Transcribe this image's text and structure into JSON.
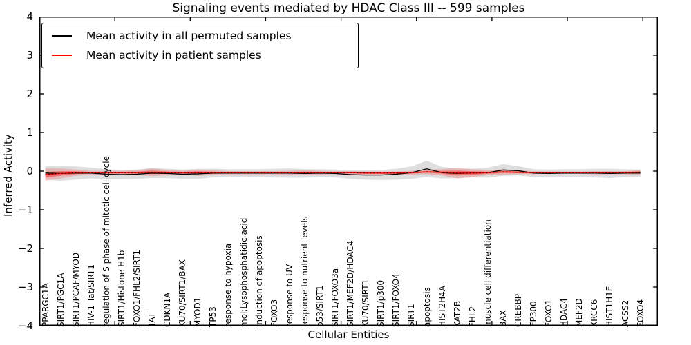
{
  "title": "Signaling events mediated by HDAC Class III -- 599 samples",
  "axes": {
    "ylabel": "Inferred Activity",
    "xlabel": "Cellular Entities"
  },
  "chart_data": {
    "type": "line",
    "title": "Signaling events mediated by HDAC Class III -- 599 samples",
    "xlabel": "Cellular Entities",
    "ylabel": "Inferred Activity",
    "ylim": [
      -4,
      4
    ],
    "grid": false,
    "legend_position": "upper left",
    "yticks": [
      "4",
      "3",
      "2",
      "1",
      "0",
      "−1",
      "−2",
      "−3",
      "−4"
    ],
    "categories": [
      "PPARGC1A",
      "SIRT1/PGC1A",
      "SIRT1/PCAF/MYOD",
      "HIV-1 Tat/SIRT1",
      "regulation of S phase of mitotic cell cycle",
      "SIRT1/Histone H1b",
      "FOXO1/FHL2/SIRT1",
      "TAT",
      "CDKN1A",
      "KU70/SIRT1/BAX",
      "MYOD1",
      "TP53",
      "response to hypoxia",
      "mol:Lysophosphatidic acid",
      "induction of apoptosis",
      "FOXO3",
      "response to UV",
      "response to nutrient levels",
      "p53/SIRT1",
      "SIRT1/FOXO3a",
      "SIRT1/MEF2D/HDAC4",
      "KU70/SIRT1",
      "SIRT1/p300",
      "SIRT1/FOXO4",
      "SIRT1",
      "apoptosis",
      "HIST2H4A",
      "KAT2B",
      "FHL2",
      "muscle cell differentiation",
      "BAX",
      "CREBBP",
      "EP300",
      "FOXO1",
      "HDAC4",
      "MEF2D",
      "XRCC6",
      "HIST1H1E",
      "ACSS2",
      "FOXO4"
    ],
    "series": [
      {
        "name": "Mean activity in all permuted samples",
        "color": "#000000",
        "style": "solid",
        "values": [
          -0.05,
          -0.06,
          -0.05,
          -0.05,
          -0.08,
          -0.09,
          -0.08,
          -0.05,
          -0.06,
          -0.08,
          -0.07,
          -0.05,
          -0.05,
          -0.05,
          -0.05,
          -0.05,
          -0.05,
          -0.06,
          -0.05,
          -0.06,
          -0.09,
          -0.1,
          -0.1,
          -0.08,
          -0.04,
          0.06,
          -0.04,
          -0.06,
          -0.05,
          -0.04,
          0.03,
          0.01,
          -0.05,
          -0.06,
          -0.05,
          -0.05,
          -0.05,
          -0.06,
          -0.05,
          -0.05
        ]
      },
      {
        "name": "Mean activity in patient samples",
        "color": "#ff0000",
        "style": "solid",
        "values": [
          -0.09,
          -0.06,
          -0.04,
          -0.04,
          -0.04,
          -0.04,
          -0.04,
          -0.03,
          -0.04,
          -0.04,
          -0.04,
          -0.04,
          -0.04,
          -0.04,
          -0.04,
          -0.04,
          -0.04,
          -0.04,
          -0.04,
          -0.04,
          -0.04,
          -0.05,
          -0.05,
          -0.05,
          -0.04,
          -0.02,
          -0.03,
          -0.05,
          -0.05,
          -0.04,
          -0.02,
          -0.03,
          -0.04,
          -0.04,
          -0.04,
          -0.04,
          -0.04,
          -0.04,
          -0.04,
          -0.03
        ]
      }
    ],
    "bands": [
      {
        "name": "permuted-sample-range",
        "fill": "rgba(0,0,0,0.13)",
        "upper": [
          0.12,
          0.13,
          0.12,
          0.09,
          0.05,
          0.03,
          0.04,
          0.08,
          0.06,
          0.04,
          0.06,
          0.06,
          0.05,
          0.05,
          0.05,
          0.06,
          0.07,
          0.05,
          0.05,
          0.04,
          0.02,
          0.02,
          0.03,
          0.06,
          0.12,
          0.27,
          0.11,
          0.06,
          0.06,
          0.09,
          0.18,
          0.13,
          0.05,
          0.04,
          0.05,
          0.05,
          0.06,
          0.06,
          0.05,
          0.04
        ],
        "lower": [
          -0.22,
          -0.25,
          -0.22,
          -0.19,
          -0.21,
          -0.21,
          -0.2,
          -0.18,
          -0.18,
          -0.2,
          -0.2,
          -0.16,
          -0.15,
          -0.15,
          -0.15,
          -0.16,
          -0.17,
          -0.17,
          -0.15,
          -0.16,
          -0.2,
          -0.22,
          -0.23,
          -0.22,
          -0.2,
          -0.15,
          -0.19,
          -0.18,
          -0.16,
          -0.17,
          -0.12,
          -0.11,
          -0.15,
          -0.16,
          -0.15,
          -0.15,
          -0.16,
          -0.18,
          -0.15,
          -0.14
        ]
      },
      {
        "name": "patient-sample-range",
        "fill": "rgba(255,0,0,0.18)",
        "inner_fill": "rgba(255,0,0,0.38)",
        "upper": [
          0.07,
          0.07,
          0.04,
          0.01,
          0.01,
          0.01,
          0.02,
          0.07,
          0.03,
          0.01,
          0.04,
          0.02,
          0.0,
          0.0,
          0.0,
          0.0,
          0.01,
          0.02,
          0.01,
          0.0,
          0.0,
          -0.01,
          -0.01,
          -0.01,
          0.01,
          0.04,
          0.05,
          0.09,
          0.05,
          0.02,
          0.05,
          0.02,
          0.0,
          -0.01,
          -0.01,
          -0.01,
          0.0,
          0.0,
          0.0,
          0.03
        ],
        "lower": [
          -0.25,
          -0.19,
          -0.12,
          -0.09,
          -0.09,
          -0.09,
          -0.1,
          -0.13,
          -0.11,
          -0.09,
          -0.12,
          -0.1,
          -0.08,
          -0.08,
          -0.08,
          -0.08,
          -0.09,
          -0.1,
          -0.09,
          -0.08,
          -0.08,
          -0.09,
          -0.09,
          -0.09,
          -0.09,
          -0.08,
          -0.11,
          -0.19,
          -0.15,
          -0.1,
          -0.09,
          -0.08,
          -0.08,
          -0.07,
          -0.07,
          -0.07,
          -0.08,
          -0.08,
          -0.08,
          -0.09
        ]
      }
    ]
  }
}
